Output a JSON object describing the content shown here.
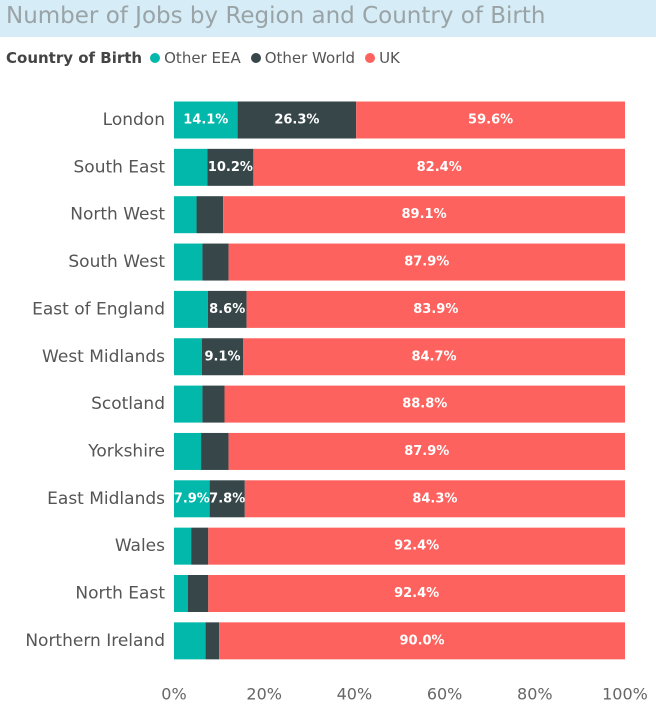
{
  "title": "Number of Jobs by Region and Country of Birth",
  "legend": {
    "title": "Country of Birth",
    "items": [
      {
        "label": "Other EEA",
        "color": "#01b8aa"
      },
      {
        "label": "Other World",
        "color": "#374649"
      },
      {
        "label": "UK",
        "color": "#fd625e"
      }
    ]
  },
  "chart_data": {
    "type": "bar",
    "orientation": "horizontal",
    "stacked": "100%",
    "categories": [
      "London",
      "South East",
      "North West",
      "South West",
      "East of England",
      "West Midlands",
      "Scotland",
      "Yorkshire",
      "East Midlands",
      "Wales",
      "North East",
      "Northern Ireland"
    ],
    "series": [
      {
        "name": "Other EEA",
        "color": "#01b8aa",
        "values": [
          14.1,
          7.4,
          5.0,
          6.3,
          7.5,
          6.2,
          6.3,
          6.0,
          7.9,
          3.8,
          3.1,
          7.0
        ],
        "labels": [
          "14.1%",
          "",
          "",
          "",
          "",
          "",
          "",
          "",
          "7.9%",
          "",
          "",
          ""
        ]
      },
      {
        "name": "Other World",
        "color": "#374649",
        "values": [
          26.3,
          10.2,
          5.9,
          5.8,
          8.6,
          9.1,
          4.9,
          6.1,
          7.8,
          3.8,
          4.5,
          3.0
        ],
        "labels": [
          "26.3%",
          "10.2%",
          "",
          "",
          "8.6%",
          "9.1%",
          "",
          "",
          "7.8%",
          "",
          "",
          ""
        ]
      },
      {
        "name": "UK",
        "color": "#fd625e",
        "values": [
          59.6,
          82.4,
          89.1,
          87.9,
          83.9,
          84.7,
          88.8,
          87.9,
          84.3,
          92.4,
          92.4,
          90.0
        ],
        "labels": [
          "59.6%",
          "82.4%",
          "89.1%",
          "87.9%",
          "83.9%",
          "84.7%",
          "88.8%",
          "87.9%",
          "84.3%",
          "92.4%",
          "92.4%",
          "90.0%"
        ]
      }
    ],
    "xlim": [
      0,
      100
    ],
    "xticks": [
      "0%",
      "20%",
      "40%",
      "60%",
      "80%",
      "100%"
    ],
    "grid": false
  }
}
